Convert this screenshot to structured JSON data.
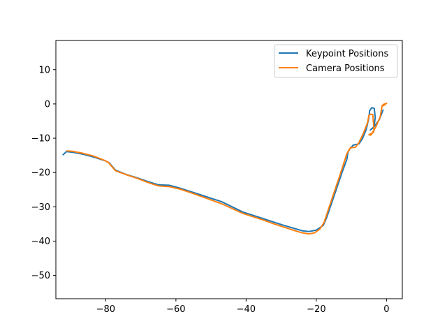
{
  "chart_data": {
    "type": "line",
    "title": "",
    "xlabel": "",
    "ylabel": "",
    "xlim": [
      -94.2,
      4.5
    ],
    "ylim": [
      -56.8,
      18.5
    ],
    "x_ticks": [
      -80,
      -60,
      -40,
      -20,
      0
    ],
    "x_tick_labels": [
      "−80",
      "−60",
      "−40",
      "−20",
      "0"
    ],
    "y_ticks": [
      10,
      0,
      -10,
      -20,
      -30,
      -40,
      -50
    ],
    "y_tick_labels": [
      "10",
      "0",
      "−10",
      "−20",
      "−30",
      "−40",
      "−50"
    ],
    "grid": false,
    "legend_position": "upper right",
    "series": [
      {
        "name": "Keypoint Positions",
        "color": "#1f77b4",
        "points": [
          [
            -92.1,
            -14.8
          ],
          [
            -91.2,
            -13.9
          ],
          [
            -89.4,
            -14.1
          ],
          [
            -86.3,
            -14.7
          ],
          [
            -83.1,
            -15.6
          ],
          [
            -80.1,
            -16.6
          ],
          [
            -79.0,
            -17.2
          ],
          [
            -77.2,
            -19.3
          ],
          [
            -74.1,
            -20.6
          ],
          [
            -71.2,
            -21.5
          ],
          [
            -68.1,
            -22.6
          ],
          [
            -65.0,
            -23.6
          ],
          [
            -62.0,
            -23.7
          ],
          [
            -59.0,
            -24.5
          ],
          [
            -56.0,
            -25.5
          ],
          [
            -53.0,
            -26.5
          ],
          [
            -50.0,
            -27.5
          ],
          [
            -47.0,
            -28.5
          ],
          [
            -44.0,
            -30.0
          ],
          [
            -41.0,
            -31.5
          ],
          [
            -38.0,
            -32.5
          ],
          [
            -35.0,
            -33.5
          ],
          [
            -32.0,
            -34.5
          ],
          [
            -29.0,
            -35.5
          ],
          [
            -26.0,
            -36.4
          ],
          [
            -24.0,
            -37.0
          ],
          [
            -22.0,
            -37.2
          ],
          [
            -20.0,
            -36.8
          ],
          [
            -18.0,
            -35.4
          ],
          [
            -17.0,
            -33.0
          ],
          [
            -15.5,
            -28.5
          ],
          [
            -14.0,
            -24.0
          ],
          [
            -12.5,
            -19.5
          ],
          [
            -11.3,
            -16.2
          ],
          [
            -11.0,
            -14.2
          ],
          [
            -10.5,
            -13.2
          ],
          [
            -9.5,
            -12.0
          ],
          [
            -8.5,
            -11.8
          ],
          [
            -7.8,
            -11.6
          ],
          [
            -6.8,
            -10.0
          ],
          [
            -5.8,
            -7.5
          ],
          [
            -5.1,
            -4.5
          ],
          [
            -4.8,
            -2.0
          ],
          [
            -4.2,
            -1.1
          ],
          [
            -3.5,
            -1.3
          ],
          [
            -3.2,
            -4.0
          ],
          [
            -3.6,
            -6.8
          ],
          [
            -4.6,
            -7.6
          ],
          [
            -3.5,
            -6.6
          ],
          [
            -2.0,
            -4.5
          ],
          [
            -1.0,
            -1.8
          ]
        ]
      },
      {
        "name": "Camera Positions",
        "color": "#ff7f0e",
        "points": [
          [
            -91.0,
            -13.7
          ],
          [
            -89.5,
            -13.8
          ],
          [
            -86.5,
            -14.4
          ],
          [
            -83.5,
            -15.2
          ],
          [
            -80.5,
            -16.4
          ],
          [
            -79.3,
            -17.0
          ],
          [
            -77.2,
            -19.5
          ],
          [
            -74.0,
            -20.7
          ],
          [
            -71.0,
            -21.7
          ],
          [
            -68.0,
            -22.9
          ],
          [
            -65.0,
            -23.9
          ],
          [
            -62.0,
            -24.1
          ],
          [
            -59.0,
            -24.8
          ],
          [
            -56.0,
            -25.8
          ],
          [
            -53.0,
            -26.9
          ],
          [
            -50.0,
            -28.0
          ],
          [
            -47.0,
            -29.1
          ],
          [
            -44.0,
            -30.5
          ],
          [
            -41.0,
            -31.9
          ],
          [
            -38.0,
            -32.9
          ],
          [
            -35.0,
            -33.9
          ],
          [
            -32.0,
            -35.0
          ],
          [
            -29.0,
            -36.0
          ],
          [
            -26.0,
            -37.0
          ],
          [
            -24.0,
            -37.6
          ],
          [
            -22.0,
            -37.9
          ],
          [
            -20.5,
            -37.6
          ],
          [
            -19.0,
            -36.5
          ],
          [
            -17.8,
            -34.6
          ],
          [
            -16.5,
            -30.6
          ],
          [
            -15.0,
            -26.0
          ],
          [
            -13.5,
            -21.5
          ],
          [
            -12.2,
            -17.4
          ],
          [
            -11.3,
            -14.5
          ],
          [
            -10.3,
            -12.8
          ],
          [
            -8.8,
            -12.6
          ],
          [
            -7.8,
            -11.2
          ],
          [
            -6.6,
            -8.6
          ],
          [
            -5.4,
            -5.5
          ],
          [
            -5.0,
            -3.3
          ],
          [
            -4.4,
            -3.0
          ],
          [
            -3.9,
            -3.1
          ],
          [
            -3.7,
            -5.8
          ],
          [
            -3.6,
            -8.0
          ],
          [
            -4.5,
            -9.1
          ],
          [
            -5.0,
            -9.0
          ],
          [
            -4.0,
            -8.4
          ],
          [
            -3.0,
            -6.6
          ],
          [
            -1.8,
            -3.8
          ],
          [
            -1.3,
            -0.7
          ],
          [
            -0.4,
            -0.2
          ],
          [
            0.0,
            0.2
          ],
          [
            -0.8,
            -0.1
          ],
          [
            -1.3,
            -0.6
          ]
        ]
      }
    ]
  }
}
